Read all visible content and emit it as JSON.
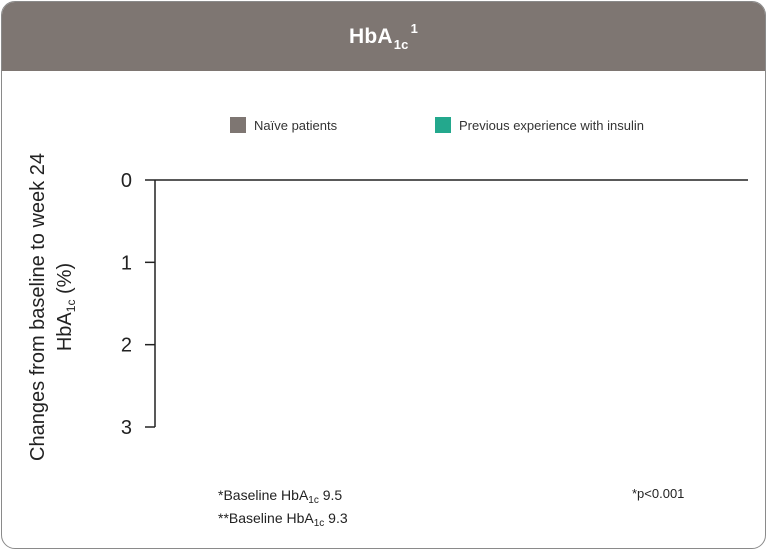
{
  "header": {
    "title_main": "HbA",
    "title_sub": "1c",
    "title_sup": "1"
  },
  "colors": {
    "header_bg": "#7e7672",
    "series_naive": "#7e7672",
    "series_insulin": "#23a88d"
  },
  "chart_data": {
    "type": "bar",
    "categories": [],
    "series": [
      {
        "name": "Naïve patients",
        "color": "#7e7672",
        "values": []
      },
      {
        "name": "Previous experience with insulin",
        "color": "#23a88d",
        "values": []
      }
    ],
    "ylabel_line1": "Changes from baseline to week 24",
    "ylabel_line2_main": "HbA",
    "ylabel_line2_sub": "1c",
    "ylabel_line2_unit": " (%)",
    "yticks": [
      0,
      1,
      2,
      3
    ],
    "ylim": [
      0,
      3
    ],
    "y_inverted": true,
    "legend_position": "top"
  },
  "footnotes": {
    "baseline1_prefix": "*Baseline HbA",
    "baseline1_sub": "1c",
    "baseline1_value": " 9.5",
    "baseline2_prefix": "**Baseline HbA",
    "baseline2_sub": "1c",
    "baseline2_value": " 9.3",
    "pvalue": "*p<0.001"
  }
}
